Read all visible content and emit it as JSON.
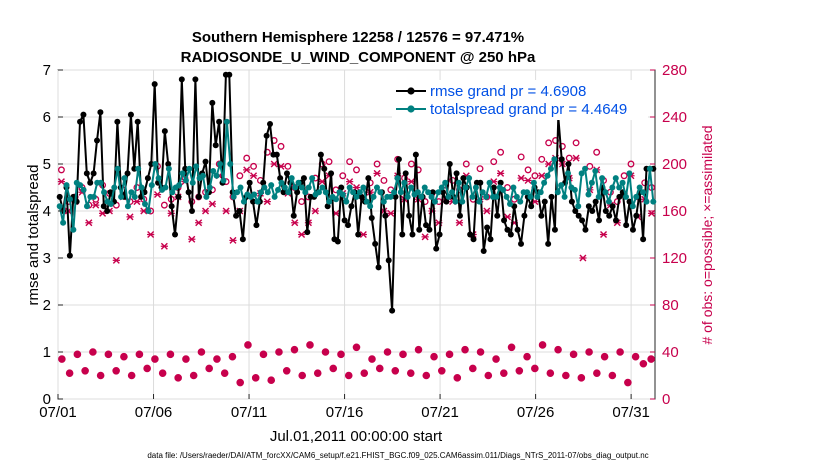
{
  "chart_data": {
    "type": "line",
    "title_line1": "Southern Hemisphere 12258 / 12576 = 97.471%",
    "title_line2": "RADIOSONDE_U_WIND_COMPONENT @ 250 hPa",
    "ylabel": "rmse and totalspread",
    "y2label": "# of obs: o=possible; ×=assimilated",
    "xlabel": "Jul.01,2011 00:00:00 start",
    "xlim": [
      0,
      31.25
    ],
    "ylim": [
      0,
      7
    ],
    "y2lim": [
      0,
      280
    ],
    "xticks": [
      0,
      5,
      10,
      15,
      20,
      25,
      30
    ],
    "xtick_labels": [
      "07/01",
      "07/06",
      "07/11",
      "07/16",
      "07/21",
      "07/26",
      "07/31"
    ],
    "yticks": [
      0,
      1,
      2,
      3,
      4,
      5,
      6,
      7
    ],
    "y2ticks": [
      0,
      40,
      80,
      120,
      160,
      200,
      240,
      280
    ],
    "legend": [
      {
        "name": "rmse grand pr = 4.6908",
        "color": "#000000"
      },
      {
        "name": "totalspread grand pr = 4.4649",
        "color": "#008080"
      }
    ],
    "series": [
      {
        "name": "rmse",
        "color": "#000000",
        "values": [
          4.3,
          4.0,
          4.5,
          3.05,
          4.3,
          4.2,
          5.9,
          6.05,
          4.8,
          4.6,
          4.8,
          5.5,
          6.1,
          4.1,
          4.0,
          4.4,
          4.2,
          5.9,
          4.5,
          4.3,
          4.8,
          6.05,
          4.9,
          5.9,
          4.3,
          4.4,
          4.7,
          5.0,
          6.7,
          4.6,
          4.5,
          5.7,
          5.0,
          4.1,
          3.5,
          4.3,
          6.8,
          4.9,
          4.4,
          4.0,
          6.8,
          4.3,
          4.8,
          5.05,
          4.4,
          6.3,
          5.4,
          5.9,
          4.6,
          6.9,
          6.9,
          4.4,
          3.9,
          4.0,
          3.4,
          4.3,
          4.6,
          4.2,
          3.7,
          4.2,
          4.6,
          5.6,
          5.85,
          5.2,
          5.2,
          4.7,
          4.4,
          4.8,
          4.6,
          3.9,
          4.4,
          4.6,
          4.7,
          3.55,
          4.3,
          4.3,
          4.4,
          5.2,
          4.9,
          4.1,
          4.8,
          3.4,
          3.35,
          4.5,
          3.8,
          3.7,
          4.1,
          4.4,
          3.5,
          4.3,
          4.2,
          4.7,
          3.85,
          3.3,
          2.8,
          4.4,
          3.9,
          2.95,
          1.88,
          4.3,
          5.1,
          3.5,
          4.8,
          3.9,
          3.5,
          5.2,
          3.6,
          4.3,
          3.7,
          3.6,
          4.4,
          3.2,
          3.5,
          4.4,
          4.2,
          5.0,
          4.3,
          4.8,
          3.9,
          4.7,
          4.5,
          3.5,
          3.4,
          4.6,
          4.6,
          3.15,
          3.65,
          3.4,
          4.5,
          3.9,
          4.6,
          3.8,
          3.6,
          3.5,
          4.1,
          3.6,
          3.3,
          3.9,
          4.3,
          4.1,
          4.5,
          4.4,
          3.9,
          4.2,
          3.3,
          4.3,
          3.6,
          6.0,
          5.1,
          4.6,
          5.0,
          4.2,
          4.0,
          3.9,
          3.8,
          3.6,
          4.1,
          4.0,
          4.2,
          3.8,
          4.5,
          4.0,
          3.9,
          4.1,
          3.8,
          4.3,
          4.4,
          3.7,
          4.2,
          3.6,
          3.9,
          4.4,
          3.4,
          4.9,
          4.9,
          4.9
        ]
      },
      {
        "name": "totalspread",
        "color": "#008080",
        "values": [
          4.1,
          3.75,
          4.55,
          4.25,
          3.6,
          4.6,
          4.55,
          4.45,
          4.1,
          4.3,
          4.3,
          4.6,
          4.6,
          4.4,
          4.2,
          4.15,
          4.5,
          4.9,
          4.3,
          4.7,
          4.1,
          4.4,
          4.3,
          4.9,
          4.5,
          4.15,
          4.0,
          4.55,
          5.0,
          4.7,
          4.45,
          4.5,
          4.9,
          4.4,
          4.5,
          4.55,
          4.8,
          4.65,
          4.9,
          4.6,
          4.95,
          4.7,
          4.75,
          4.3,
          4.5,
          4.85,
          4.75,
          5.0,
          4.65,
          5.9,
          5.0,
          4.3,
          4.4,
          4.5,
          4.2,
          4.35,
          4.3,
          4.35,
          4.2,
          4.4,
          4.5,
          4.4,
          4.55,
          4.3,
          4.45,
          4.6,
          4.5,
          4.4,
          4.7,
          4.5,
          4.6,
          4.5,
          4.4,
          4.5,
          4.7,
          4.35,
          4.4,
          4.5,
          4.4,
          4.2,
          4.3,
          4.25,
          4.4,
          4.35,
          4.2,
          4.5,
          4.4,
          4.3,
          4.4,
          4.5,
          4.2,
          4.1,
          4.3,
          4.5,
          4.4,
          4.2,
          4.3,
          4.3,
          4.4,
          4.7,
          4.4,
          4.6,
          4.3,
          4.5,
          4.35,
          4.4,
          4.3,
          4.5,
          4.4,
          4.3,
          4.2,
          4.4,
          4.5,
          4.6,
          4.3,
          4.4,
          4.2,
          4.6,
          4.2,
          4.5,
          4.7,
          4.3,
          4.5,
          4.2,
          4.4,
          4.3,
          4.6,
          4.3,
          4.3,
          4.5,
          4.45,
          4.3,
          4.15,
          4.5,
          4.3,
          4.2,
          4.4,
          4.4,
          4.3,
          4.6,
          4.3,
          4.4,
          4.6,
          4.75,
          4.9,
          5.1,
          4.4,
          4.55,
          4.3,
          4.8,
          4.5,
          4.45,
          4.1,
          4.8,
          4.9,
          4.35,
          4.6,
          4.85,
          4.3,
          4.7,
          4.4,
          4.2,
          4.5,
          4.7,
          4.5,
          4.6,
          4.3,
          4.8,
          4.1,
          4.3,
          4.5,
          4.4,
          4.2,
          4.9,
          4.2
        ]
      }
    ],
    "obs_possible_top": [
      195,
      168,
      172,
      180,
      165,
      170,
      182,
      175,
      165,
      178,
      168,
      180,
      170,
      160,
      198,
      165,
      170,
      180,
      188,
      168,
      172,
      176,
      178,
      200,
      185,
      172,
      190,
      205,
      198,
      186,
      210,
      220,
      215,
      198,
      180,
      168,
      172,
      188,
      200,
      202,
      178,
      190,
      202,
      195,
      170,
      184,
      200,
      186,
      178,
      204,
      188,
      200,
      195,
      168,
      175,
      168,
      182,
      186,
      178,
      200,
      170,
      196,
      172,
      202,
      210,
      180,
      170,
      206,
      195,
      190,
      204,
      218,
      220,
      215,
      205,
      218,
      245,
      198,
      210,
      186,
      176,
      168,
      190,
      200,
      172,
      184,
      180
    ],
    "obs_possible_bottom": [
      34,
      22,
      38,
      24,
      40,
      20,
      38,
      24,
      36,
      20,
      38,
      26,
      34,
      22,
      38,
      18,
      34,
      20,
      40,
      26,
      34,
      22,
      36,
      14,
      46,
      18,
      38,
      16,
      40,
      24,
      42,
      20,
      46,
      22,
      40,
      26,
      38,
      20,
      44,
      22,
      34,
      26,
      40,
      24,
      38,
      22,
      42,
      20,
      36,
      24,
      38,
      18,
      42,
      26,
      40,
      20,
      34,
      22,
      44,
      24,
      36,
      26,
      46,
      22,
      42,
      20,
      38,
      18,
      40,
      22,
      36,
      20,
      40,
      14,
      36,
      30,
      34
    ],
    "obs_assimilated_top": [
      185,
      160,
      168,
      176,
      150,
      165,
      158,
      160,
      118,
      172,
      155,
      168,
      160,
      140,
      174,
      130,
      158,
      172,
      185,
      136,
      150,
      160,
      166,
      190,
      160,
      135,
      160,
      195,
      190,
      175,
      168,
      200,
      198,
      175,
      150,
      140,
      150,
      160,
      185,
      190,
      158,
      175,
      185,
      180,
      140,
      176,
      192,
      160,
      158,
      190,
      170,
      185,
      170,
      138,
      160,
      150,
      170,
      168,
      150,
      190,
      140,
      170,
      160,
      185,
      192,
      155,
      150,
      188,
      186,
      168,
      190,
      200,
      205,
      200,
      188,
      205,
      120,
      178,
      195,
      140,
      165,
      150,
      175,
      190,
      155,
      170,
      158
    ],
    "footer": "data file: /Users/raeder/DAI/ATM_forcXX/CAM6_setup/f.e21.FHIST_BGC.f09_025.CAM6assim.011/Diags_NTrS_2011-07/obs_diag_output.nc",
    "grid": true,
    "legend_position": "top-right"
  }
}
